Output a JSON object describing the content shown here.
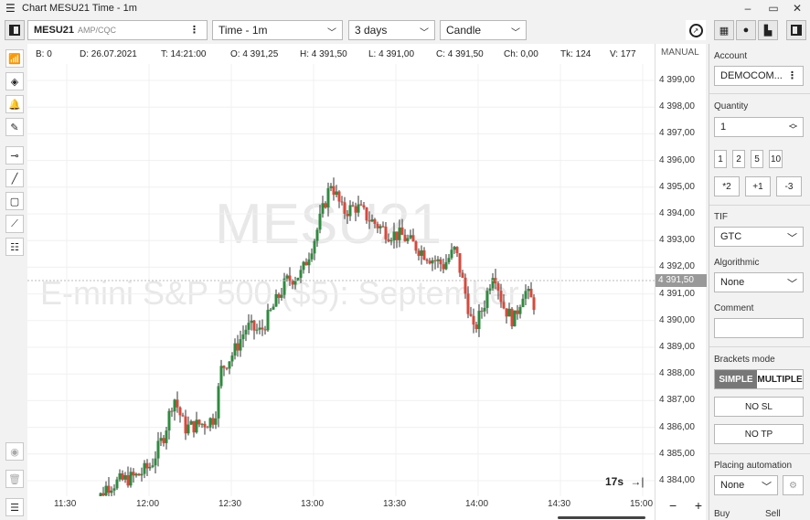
{
  "window": {
    "title": "Chart MESU21 Time - 1m"
  },
  "toolbar": {
    "symbol": "MESU21",
    "symbol_source": "AMP/CQC",
    "timeframe": "Time - 1m",
    "range": "3 days",
    "chart_style": "Candle"
  },
  "infobar": {
    "b": "B: 0",
    "d": "D: 26.07.2021",
    "t": "T: 14:21:00",
    "o": "O: 4 391,25",
    "h": "H: 4 391,50",
    "l": "L: 4 391,00",
    "c": "C: 4 391,50",
    "ch": "Ch: 0,00",
    "tk": "Tk: 124",
    "v": "V: 177"
  },
  "watermark": {
    "symbol": "MESU21",
    "name": "E-mini S&P 500 ($5): September"
  },
  "axis": {
    "mode": "MANUAL",
    "price_ticks": [
      "4 399,00",
      "4 398,00",
      "4 397,00",
      "4 396,00",
      "4 395,00",
      "4 394,00",
      "4 393,00",
      "4 392,00",
      "4 391,00",
      "4 390,00",
      "4 389,00",
      "4 388,00",
      "4 387,00",
      "4 386,00",
      "4 385,00",
      "4 384,00"
    ],
    "last_price": "4 391,50",
    "time_ticks": [
      "11:30",
      "12:00",
      "12:30",
      "13:00",
      "13:30",
      "14:00",
      "14:30",
      "15:00"
    ],
    "countdown": "17s"
  },
  "panel": {
    "account_label": "Account",
    "account_value": "DEMOCOM...",
    "quantity_label": "Quantity",
    "quantity_value": "1",
    "qty_buttons": [
      "1",
      "2",
      "5",
      "10"
    ],
    "mult_buttons": [
      "*2",
      "+1",
      "-3"
    ],
    "tif_label": "TIF",
    "tif_value": "GTC",
    "algo_label": "Algorithmic",
    "algo_value": "None",
    "comment_label": "Comment",
    "comment_value": "",
    "brackets_label": "Brackets mode",
    "bracket_simple": "SIMPLE",
    "bracket_multiple": "MULTIPLE",
    "no_sl": "NO SL",
    "no_tp": "NO TP",
    "placing_label": "Placing automation",
    "placing_value": "None",
    "buy_label": "Buy",
    "sell_label": "Sell"
  },
  "colors": {
    "up": "#2e8b3e",
    "down": "#d9483b",
    "accent": "#555555"
  }
}
